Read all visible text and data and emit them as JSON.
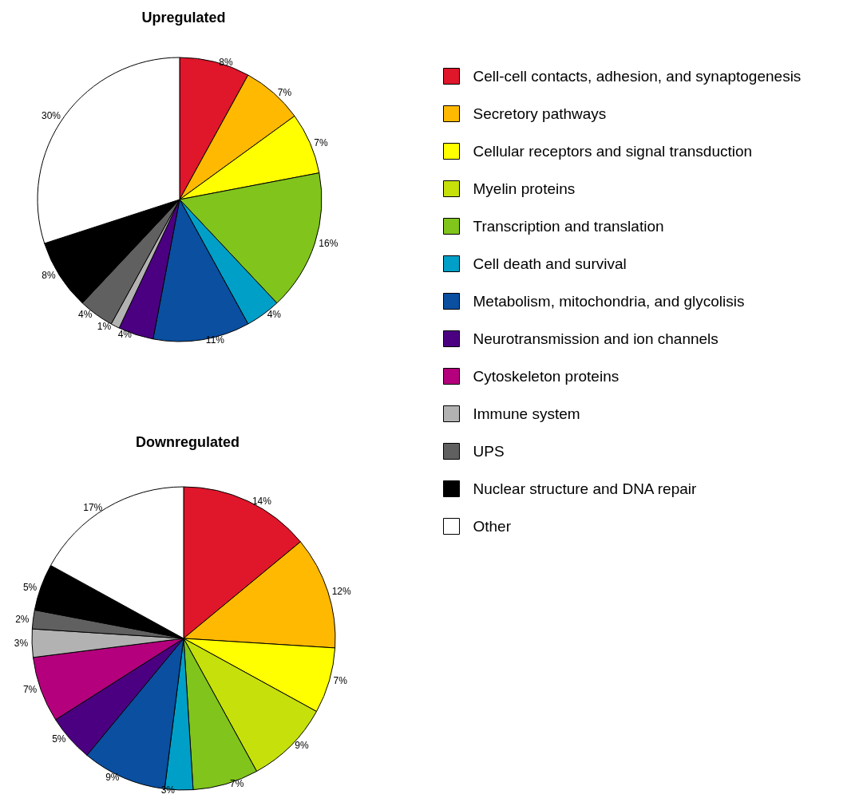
{
  "chart_data": {
    "type": "pie",
    "legend": "right",
    "categories": [
      "Cell-cell contacts, adhesion, and synaptogenesis",
      "Secretory pathways",
      "Cellular receptors and signal transduction",
      "Myelin proteins",
      "Transcription and translation",
      "Cell death and survival",
      "Metabolism, mitochondria, and glycolisis",
      "Neurotransmission and ion channels",
      "Cytoskeleton proteins",
      "Immune system",
      "UPS",
      "Nuclear structure and DNA repair",
      "Other"
    ],
    "colors": [
      "#e0162b",
      "#ffb900",
      "#ffff00",
      "#c5e00b",
      "#80c41c",
      "#009fc8",
      "#0a4fa0",
      "#4b0082",
      "#b4007c",
      "#b2b2b2",
      "#606060",
      "#000000",
      "#ffffff"
    ],
    "series": [
      {
        "name": "Upregulated",
        "values": [
          8,
          7,
          7,
          null,
          16,
          4,
          11,
          4,
          null,
          1,
          4,
          8,
          30
        ],
        "value_labels": [
          "8%",
          "7%",
          "7%",
          null,
          "16%",
          "4%",
          "11%",
          "4%",
          null,
          "1%",
          "4%",
          "8%",
          "30%"
        ]
      },
      {
        "name": "Downregulated",
        "values": [
          14,
          12,
          7,
          9,
          7,
          3,
          9,
          5,
          7,
          3,
          2,
          5,
          17
        ],
        "value_labels": [
          "14%",
          "12%",
          "7%",
          "9%",
          "7%",
          "3%",
          "9%",
          "5%",
          "7%",
          "3%",
          "2%",
          "5%",
          "17%"
        ]
      }
    ]
  }
}
